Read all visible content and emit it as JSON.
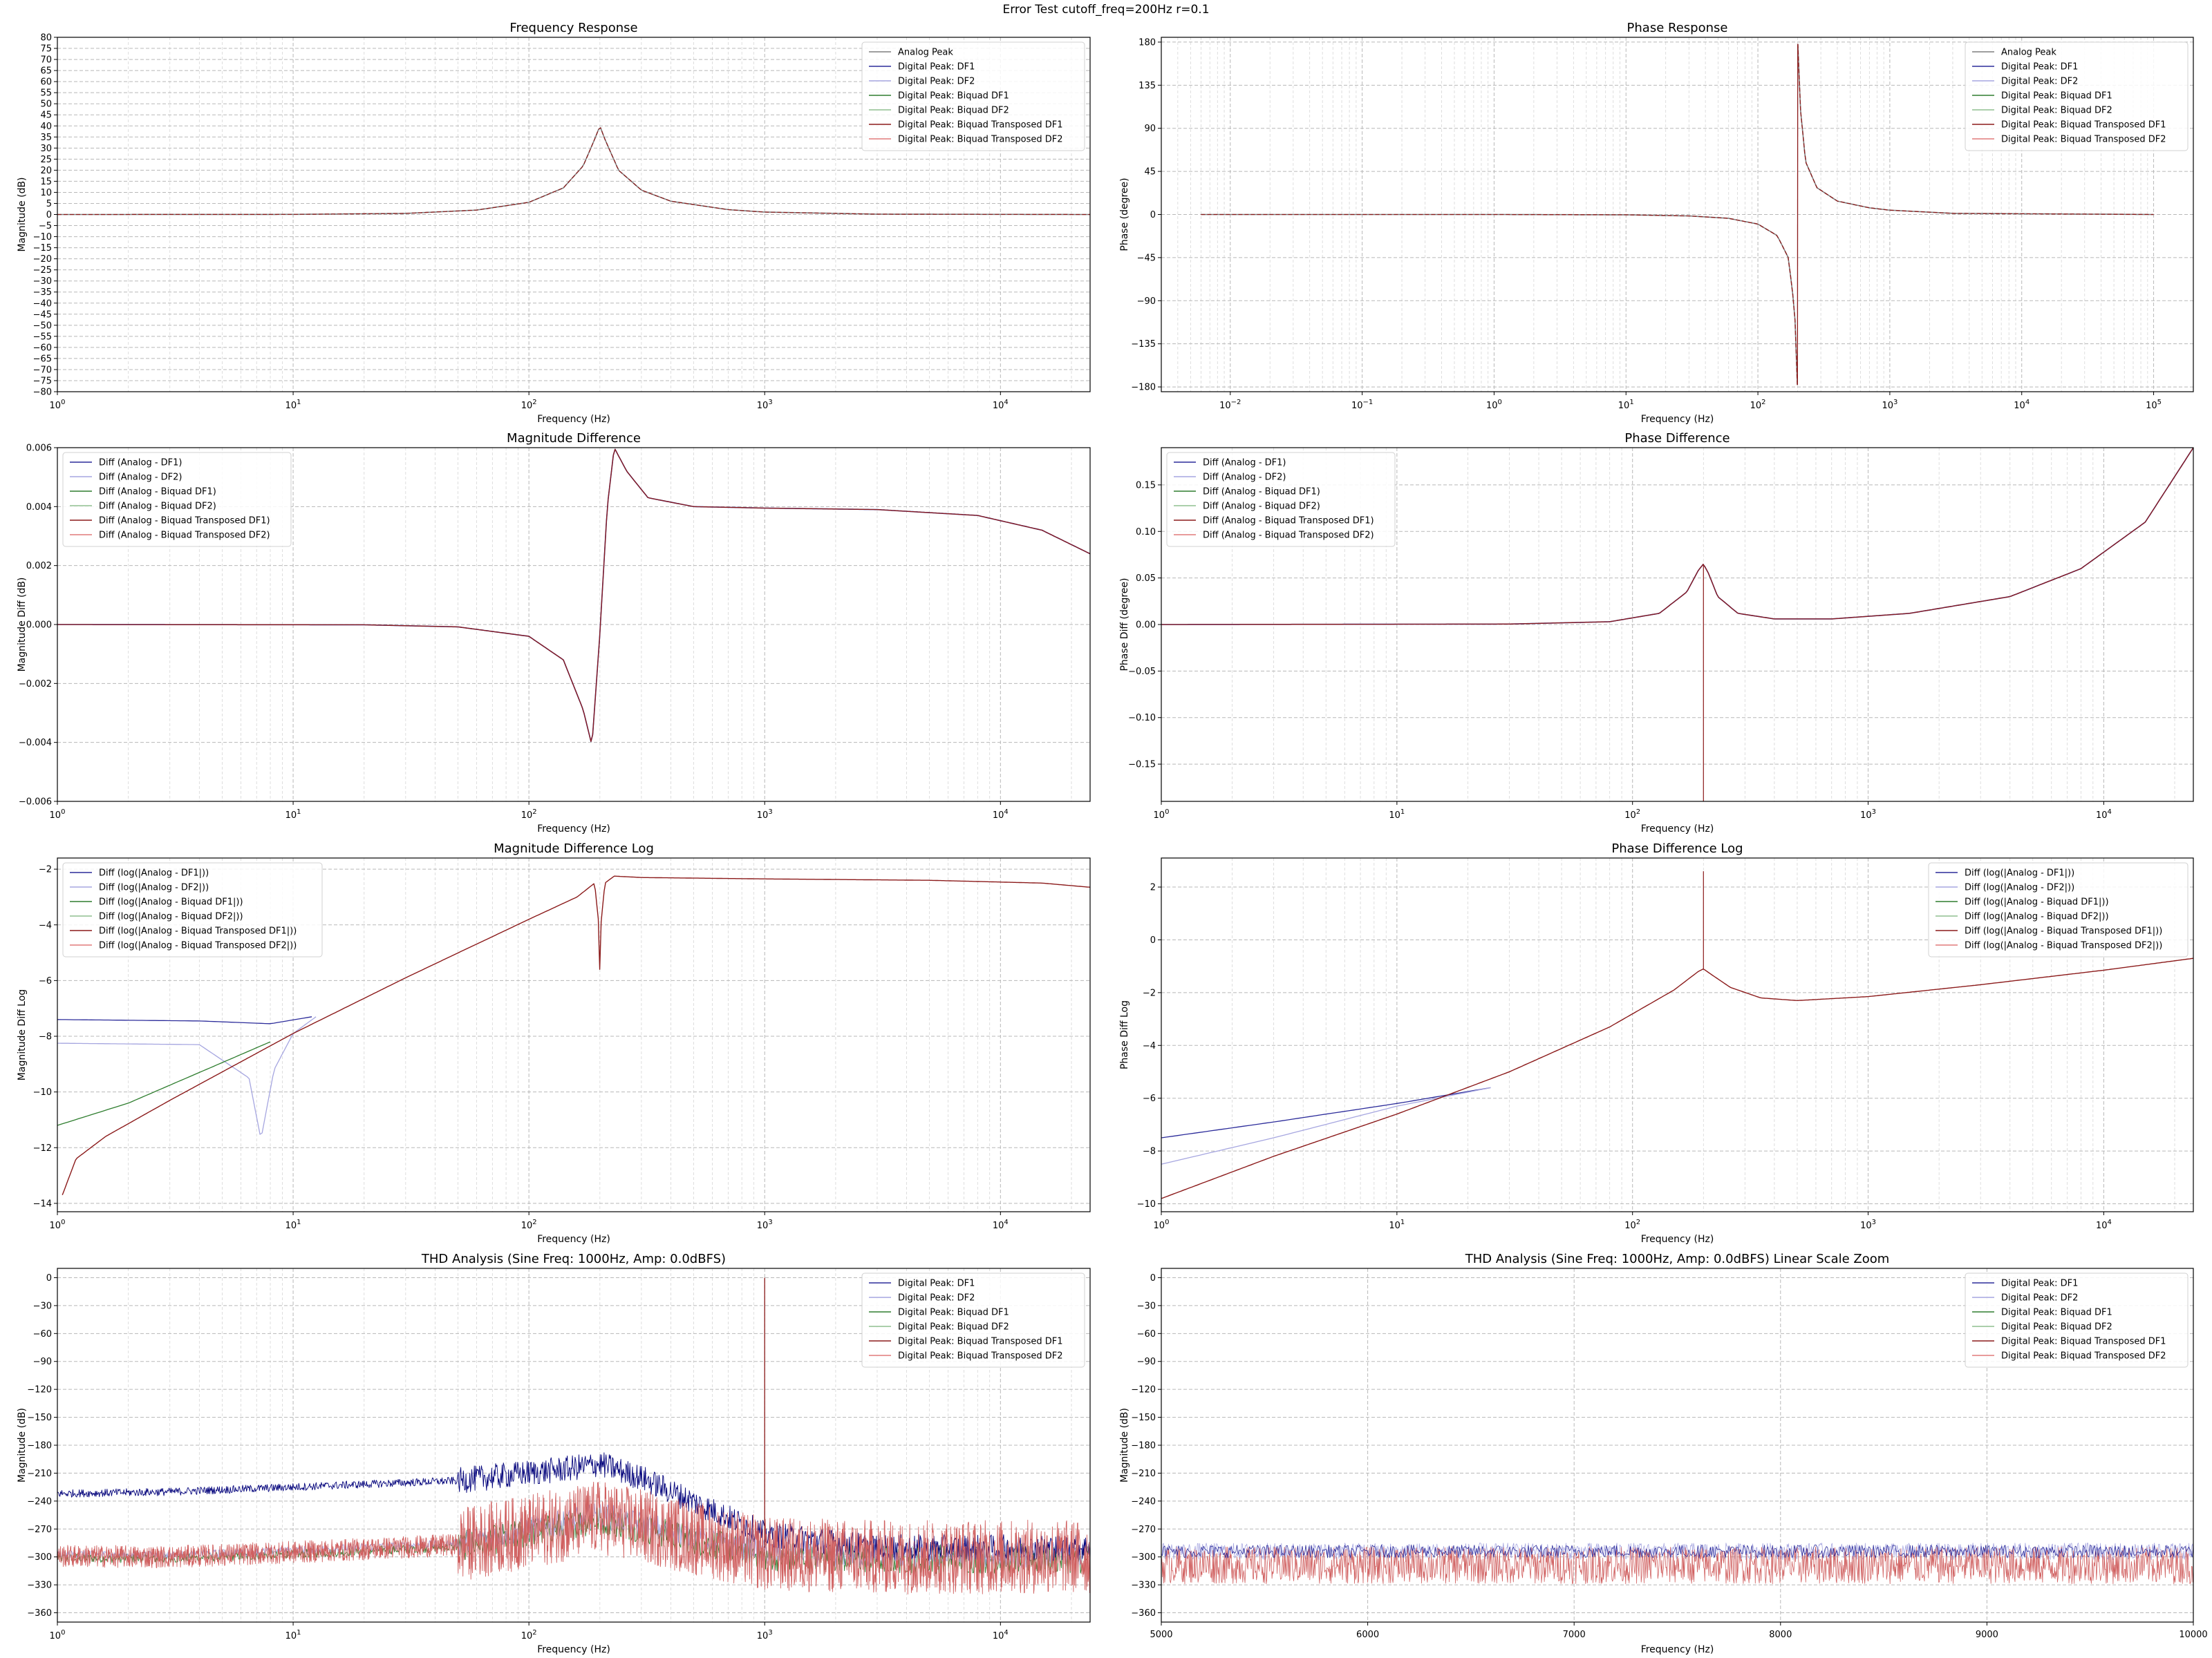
{
  "figure": {
    "title": "Error Test cutoff_freq=200Hz r=0.1"
  },
  "colors": {
    "analog": "#7f7f7f",
    "df1": "#2b2b9a",
    "df2": "#a6a6e0",
    "biquad_df1": "#2e7d2e",
    "biquad_df2": "#8fbf8f",
    "biquad_t_df1": "#8b1a1a",
    "biquad_t_df2": "#e07a7a",
    "thd_df1": "#00007a",
    "thd_t_df1": "#d06060"
  },
  "chart_data": [
    {
      "id": "freq_response",
      "type": "line",
      "title": "Frequency Response",
      "xlabel": "Frequency (Hz)",
      "ylabel": "Magnitude (dB)",
      "xscale": "log",
      "xlim": [
        1,
        24000
      ],
      "ylim": [
        -80,
        80
      ],
      "xticks": [
        1,
        10,
        100,
        1000,
        10000
      ],
      "xtick_labels": [
        "10^0",
        "10^1",
        "10^2",
        "10^3",
        "10^4"
      ],
      "yticks": [
        -80,
        -75,
        -70,
        -65,
        -60,
        -55,
        -50,
        -45,
        -40,
        -35,
        -30,
        -25,
        -20,
        -15,
        -10,
        -5,
        0,
        5,
        10,
        15,
        20,
        25,
        30,
        35,
        40,
        45,
        50,
        55,
        60,
        65,
        70,
        75,
        80
      ],
      "grid": true,
      "legend_loc": "upper right",
      "legend": [
        "Analog Peak",
        "Digital Peak: DF1",
        "Digital Peak: DF2",
        "Digital Peak: Biquad DF1",
        "Digital Peak: Biquad DF2",
        "Digital Peak: Biquad Transposed DF1",
        "Digital Peak: Biquad Transposed DF2"
      ],
      "series_x": [
        1,
        10,
        30,
        60,
        100,
        140,
        170,
        190,
        200,
        210,
        240,
        300,
        400,
        700,
        1000,
        3000,
        24000
      ],
      "series_y": [
        0,
        0.05,
        0.5,
        2,
        5.5,
        12,
        22,
        34,
        40,
        34,
        20,
        11,
        6,
        2.2,
        1.1,
        0.15,
        0.0
      ]
    },
    {
      "id": "phase_response",
      "type": "line",
      "title": "Phase Response",
      "xlabel": "Frequency (Hz)",
      "ylabel": "Phase (degree)",
      "xscale": "log",
      "xlim": [
        0.003,
        200000
      ],
      "ylim": [
        -185,
        185
      ],
      "xticks": [
        0.01,
        0.1,
        1,
        10,
        100,
        1000,
        10000,
        100000
      ],
      "xtick_labels": [
        "10^-2",
        "10^-1",
        "10^0",
        "10^1",
        "10^2",
        "10^3",
        "10^4",
        "10^5"
      ],
      "yticks": [
        -180,
        -135,
        -90,
        -45,
        0,
        45,
        90,
        135,
        180
      ],
      "grid": true,
      "legend_loc": "upper right",
      "legend": [
        "Analog Peak",
        "Digital Peak: DF1",
        "Digital Peak: DF2",
        "Digital Peak: Biquad DF1",
        "Digital Peak: Biquad DF2",
        "Digital Peak: Biquad Transposed DF1",
        "Digital Peak: Biquad Transposed DF2"
      ],
      "series_x": [
        0.006,
        1,
        10,
        30,
        60,
        100,
        140,
        170,
        190,
        199,
        200,
        201,
        210,
        230,
        280,
        400,
        700,
        1000,
        3000,
        100000
      ],
      "series_y": [
        0,
        0,
        -0.3,
        -1.5,
        -4,
        -10,
        -22,
        -45,
        -100,
        -178,
        0,
        178,
        110,
        55,
        28,
        14,
        7,
        4.5,
        1.2,
        0
      ]
    },
    {
      "id": "mag_diff",
      "type": "line",
      "title": "Magnitude Difference",
      "xlabel": "Frequency (Hz)",
      "ylabel": "Magnitude Diff (dB)",
      "xscale": "log",
      "xlim": [
        1,
        24000
      ],
      "ylim": [
        -0.006,
        0.006
      ],
      "xticks": [
        1,
        10,
        100,
        1000,
        10000
      ],
      "xtick_labels": [
        "10^0",
        "10^1",
        "10^2",
        "10^3",
        "10^4"
      ],
      "yticks": [
        -0.006,
        -0.004,
        -0.002,
        0.0,
        0.002,
        0.004,
        0.006
      ],
      "ytick_labels": [
        "−0.006",
        "−0.004",
        "−0.002",
        "0.000",
        "0.002",
        "0.004",
        "0.006"
      ],
      "grid": true,
      "legend_loc": "upper left",
      "legend": [
        "Diff (Analog - DF1)",
        "Diff (Analog - DF2)",
        "Diff (Analog - Biquad DF1)",
        "Diff (Analog - Biquad DF2)",
        "Diff (Analog - Biquad Transposed DF1)",
        "Diff (Analog - Biquad Transposed DF2)"
      ],
      "series_x": [
        1,
        20,
        50,
        100,
        140,
        170,
        185,
        200,
        215,
        230,
        260,
        320,
        500,
        1000,
        3000,
        8000,
        15000,
        24000
      ],
      "series_y": [
        0,
        -1e-05,
        -8e-05,
        -0.0004,
        -0.0012,
        -0.0029,
        -0.0041,
        -0.0003,
        0.004,
        0.006,
        0.0052,
        0.0043,
        0.004,
        0.00395,
        0.0039,
        0.0037,
        0.0032,
        0.0024
      ]
    },
    {
      "id": "phase_diff",
      "type": "line",
      "title": "Phase Difference",
      "xlabel": "Frequency (Hz)",
      "ylabel": "Phase Diff (degree)",
      "xscale": "log",
      "xlim": [
        1,
        24000
      ],
      "ylim": [
        -0.19,
        0.19
      ],
      "xticks": [
        1,
        10,
        100,
        1000,
        10000
      ],
      "xtick_labels": [
        "10^0",
        "10^1",
        "10^2",
        "10^3",
        "10^4"
      ],
      "yticks": [
        -0.15,
        -0.1,
        -0.05,
        0.0,
        0.05,
        0.1,
        0.15
      ],
      "ytick_labels": [
        "−0.15",
        "−0.10",
        "−0.05",
        "0.00",
        "0.05",
        "0.10",
        "0.15"
      ],
      "grid": true,
      "legend_loc": "upper left",
      "legend": [
        "Diff (Analog - DF1)",
        "Diff (Analog - DF2)",
        "Diff (Analog - Biquad DF1)",
        "Diff (Analog - Biquad DF2)",
        "Diff (Analog - Biquad Transposed DF1)",
        "Diff (Analog - Biquad Transposed DF2)"
      ],
      "series_x": [
        1,
        30,
        80,
        130,
        170,
        190,
        200,
        210,
        230,
        280,
        400,
        700,
        1500,
        4000,
        8000,
        15000,
        24000
      ],
      "series_y": [
        0,
        0.0005,
        0.003,
        0.012,
        0.035,
        0.058,
        0.065,
        0.055,
        0.03,
        0.012,
        0.006,
        0.006,
        0.012,
        0.03,
        0.06,
        0.11,
        0.19
      ],
      "spike_x": 200,
      "spike_to": -0.19
    },
    {
      "id": "mag_diff_log",
      "type": "line",
      "title": "Magnitude Difference Log",
      "xlabel": "Frequency (Hz)",
      "ylabel": "Magnitude Diff Log",
      "xscale": "log",
      "xlim": [
        1,
        24000
      ],
      "ylim": [
        -14.3,
        -1.6
      ],
      "xticks": [
        1,
        10,
        100,
        1000,
        10000
      ],
      "xtick_labels": [
        "10^0",
        "10^1",
        "10^2",
        "10^3",
        "10^4"
      ],
      "yticks": [
        -14,
        -12,
        -10,
        -8,
        -6,
        -4,
        -2
      ],
      "ytick_labels": [
        "−14",
        "−12",
        "−10",
        "−8",
        "−6",
        "−4",
        "−2"
      ],
      "grid": true,
      "legend_loc": "upper left",
      "legend": [
        "Diff (log(|Analog - DF1|))",
        "Diff (log(|Analog - DF2|))",
        "Diff (log(|Analog - Biquad DF1|))",
        "Diff (log(|Analog - Biquad DF2|))",
        "Diff (log(|Analog - Biquad Transposed DF1|))",
        "Diff (log(|Analog - Biquad Transposed DF2|))"
      ],
      "common_x": [
        1.05,
        1.2,
        1.6,
        3,
        10,
        30,
        100,
        160,
        190,
        198,
        200,
        202,
        210,
        230,
        300,
        1000,
        5000,
        15000,
        24000
      ],
      "common_y": [
        -13.7,
        -12.4,
        -11.6,
        -10.3,
        -7.9,
        -5.9,
        -3.8,
        -3.0,
        -2.5,
        -4.0,
        -5.9,
        -4.0,
        -2.5,
        -2.25,
        -2.3,
        -2.35,
        -2.4,
        -2.5,
        -2.65
      ],
      "df1_x": [
        1,
        4,
        8,
        12
      ],
      "df1_y": [
        -7.4,
        -7.45,
        -7.55,
        -7.3
      ],
      "df2_x": [
        1,
        4,
        6.5,
        7.3,
        8.3,
        10,
        12.5
      ],
      "df2_y": [
        -8.25,
        -8.3,
        -9.5,
        -11.7,
        -9.2,
        -7.9,
        -7.3
      ],
      "green_x": [
        1,
        2,
        4,
        8
      ],
      "green_y": [
        -11.2,
        -10.4,
        -9.3,
        -8.2
      ]
    },
    {
      "id": "phase_diff_log",
      "type": "line",
      "title": "Phase Difference Log",
      "xlabel": "Frequency (Hz)",
      "ylabel": "Phase Diff Log",
      "xscale": "log",
      "xlim": [
        1,
        24000
      ],
      "ylim": [
        -10.3,
        3.1
      ],
      "xticks": [
        1,
        10,
        100,
        1000,
        10000
      ],
      "xtick_labels": [
        "10^0",
        "10^1",
        "10^2",
        "10^3",
        "10^4"
      ],
      "yticks": [
        -10,
        -8,
        -6,
        -4,
        -2,
        0,
        2
      ],
      "ytick_labels": [
        "−10",
        "−8",
        "−6",
        "−4",
        "−2",
        "0",
        "2"
      ],
      "grid": true,
      "legend_loc": "upper right",
      "legend": [
        "Diff (log(|Analog - DF1|))",
        "Diff (log(|Analog - DF2|))",
        "Diff (log(|Analog - Biquad DF1|))",
        "Diff (log(|Analog - Biquad DF2|))",
        "Diff (log(|Analog - Biquad Transposed DF1|))",
        "Diff (log(|Analog - Biquad Transposed DF2|))"
      ],
      "common_x": [
        1,
        3,
        10,
        30,
        80,
        150,
        190,
        200,
        215,
        260,
        350,
        500,
        1000,
        3000,
        10000,
        24000
      ],
      "common_y": [
        -9.8,
        -8.2,
        -6.6,
        -5.0,
        -3.3,
        -1.9,
        -1.2,
        -1.1,
        -1.3,
        -1.8,
        -2.2,
        -2.3,
        -2.15,
        -1.7,
        -1.15,
        -0.7
      ],
      "spike_x": 200,
      "spike_to": 2.6,
      "df1_x": [
        1,
        3,
        10,
        25
      ],
      "df1_y": [
        -7.5,
        -6.9,
        -6.2,
        -5.6
      ],
      "df2_x": [
        1,
        3,
        10,
        25
      ],
      "df2_y": [
        -8.5,
        -7.5,
        -6.3,
        -5.6
      ]
    },
    {
      "id": "thd",
      "type": "line",
      "title": "THD Analysis (Sine Freq: 1000Hz, Amp: 0.0dBFS)",
      "xlabel": "Frequency (Hz)",
      "ylabel": "Magnitude (dB)",
      "xscale": "log",
      "xlim": [
        1,
        24000
      ],
      "ylim": [
        -370,
        10
      ],
      "xticks": [
        1,
        10,
        100,
        1000,
        10000
      ],
      "xtick_labels": [
        "10^0",
        "10^1",
        "10^2",
        "10^3",
        "10^4"
      ],
      "yticks": [
        -360,
        -330,
        -300,
        -270,
        -240,
        -210,
        -180,
        -150,
        -120,
        -90,
        -60,
        -30,
        0
      ],
      "ytick_labels": [
        "−360",
        "−330",
        "−300",
        "−270",
        "−240",
        "−210",
        "−180",
        "−150",
        "−120",
        "−90",
        "−60",
        "−30",
        "0"
      ],
      "grid": true,
      "legend_loc": "upper right",
      "legend": [
        "Digital Peak: DF1",
        "Digital Peak: DF2",
        "Digital Peak: Biquad DF1",
        "Digital Peak: Biquad DF2",
        "Digital Peak: Biquad Transposed DF1",
        "Digital Peak: Biquad Transposed DF2"
      ],
      "df1_env_x": [
        1,
        3,
        10,
        50,
        150,
        200,
        300,
        600,
        1000,
        3000,
        24000
      ],
      "df1_env_y": [
        -232,
        -230,
        -225,
        -218,
        -205,
        -200,
        -215,
        -250,
        -275,
        -290,
        -290
      ],
      "others_env_x": [
        1,
        3,
        10,
        50,
        150,
        200,
        300,
        600,
        1000,
        3000,
        24000
      ],
      "others_env_y": [
        -297,
        -298,
        -293,
        -285,
        -262,
        -255,
        -265,
        -282,
        -295,
        -298,
        -298
      ],
      "tone_x": 1000,
      "tone_y": 0
    },
    {
      "id": "thd_zoom",
      "type": "line",
      "title": "THD Analysis (Sine Freq: 1000Hz, Amp: 0.0dBFS) Linear Scale Zoom",
      "xlabel": "Frequency (Hz)",
      "ylabel": "Magnitude (dB)",
      "xscale": "linear",
      "xlim": [
        5000,
        10000
      ],
      "ylim": [
        -370,
        10
      ],
      "xticks": [
        5000,
        6000,
        7000,
        8000,
        9000,
        10000
      ],
      "xtick_labels": [
        "5000",
        "6000",
        "7000",
        "8000",
        "9000",
        "10000"
      ],
      "yticks": [
        -360,
        -330,
        -300,
        -270,
        -240,
        -210,
        -180,
        -150,
        -120,
        -90,
        -60,
        -30,
        0
      ],
      "ytick_labels": [
        "−360",
        "−330",
        "−300",
        "−270",
        "−240",
        "−210",
        "−180",
        "−150",
        "−120",
        "−90",
        "−60",
        "−30",
        "0"
      ],
      "grid": true,
      "legend_loc": "upper right",
      "legend": [
        "Digital Peak: DF1",
        "Digital Peak: DF2",
        "Digital Peak: Biquad DF1",
        "Digital Peak: Biquad DF2",
        "Digital Peak: Biquad Transposed DF1",
        "Digital Peak: Biquad Transposed DF2"
      ],
      "blue_band": [
        -288,
        -300
      ],
      "red_band": [
        -300,
        -318
      ]
    }
  ]
}
